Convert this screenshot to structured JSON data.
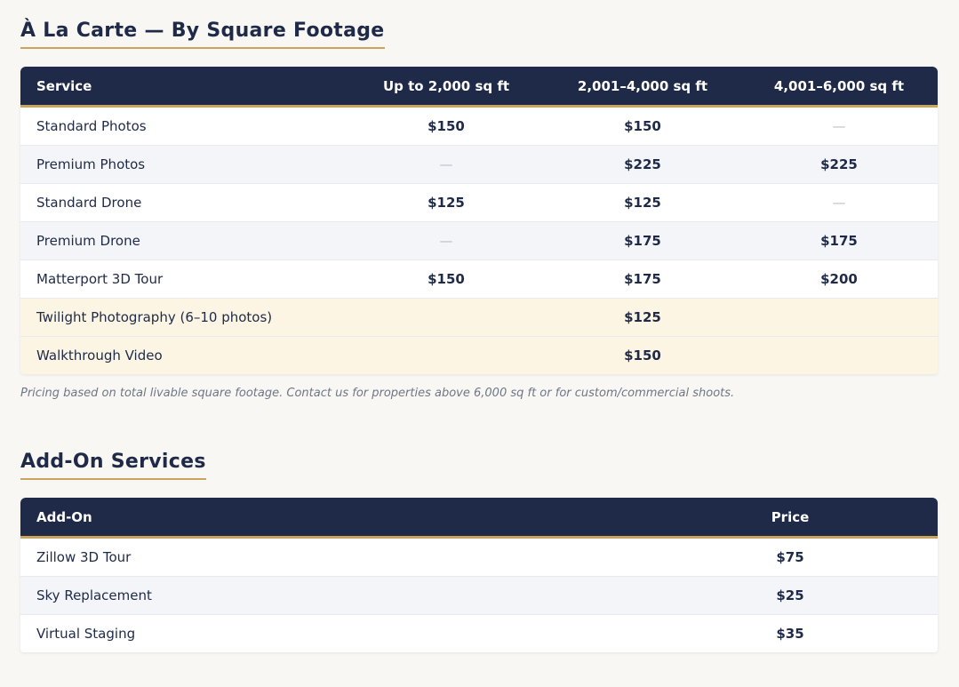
{
  "sections": [
    {
      "title": "À La Carte — By Square Footage",
      "table": {
        "header": [
          "Service",
          "Up to 2,000 sq ft",
          "2,001–4,000 sq ft",
          "4,001–6,000 sq ft"
        ],
        "rows": [
          [
            "Standard Photos",
            "$150",
            "$150",
            "—"
          ],
          [
            "Premium Photos",
            "—",
            "$225",
            "$225"
          ],
          [
            "Standard Drone",
            "$125",
            "$125",
            "—"
          ],
          [
            "Premium Drone",
            "—",
            "$175",
            "$175"
          ],
          [
            "Matterport 3D Tour",
            "$150",
            "$175",
            "$200"
          ],
          [
            "Twilight Photography (6–10 photos)",
            "$125"
          ],
          [
            "Walkthrough Video",
            "$150"
          ]
        ]
      },
      "note": "Pricing based on total livable square footage. Contact us for properties above 6,000 sq ft or for custom/commercial shoots."
    },
    {
      "title": "Add-On Services",
      "table": {
        "header": [
          "Add-On",
          "Price"
        ],
        "rows": [
          [
            "Zillow 3D Tour",
            "$75"
          ],
          [
            "Sky Replacement",
            "$25"
          ],
          [
            "Virtual Staging",
            "$35"
          ]
        ]
      }
    }
  ]
}
